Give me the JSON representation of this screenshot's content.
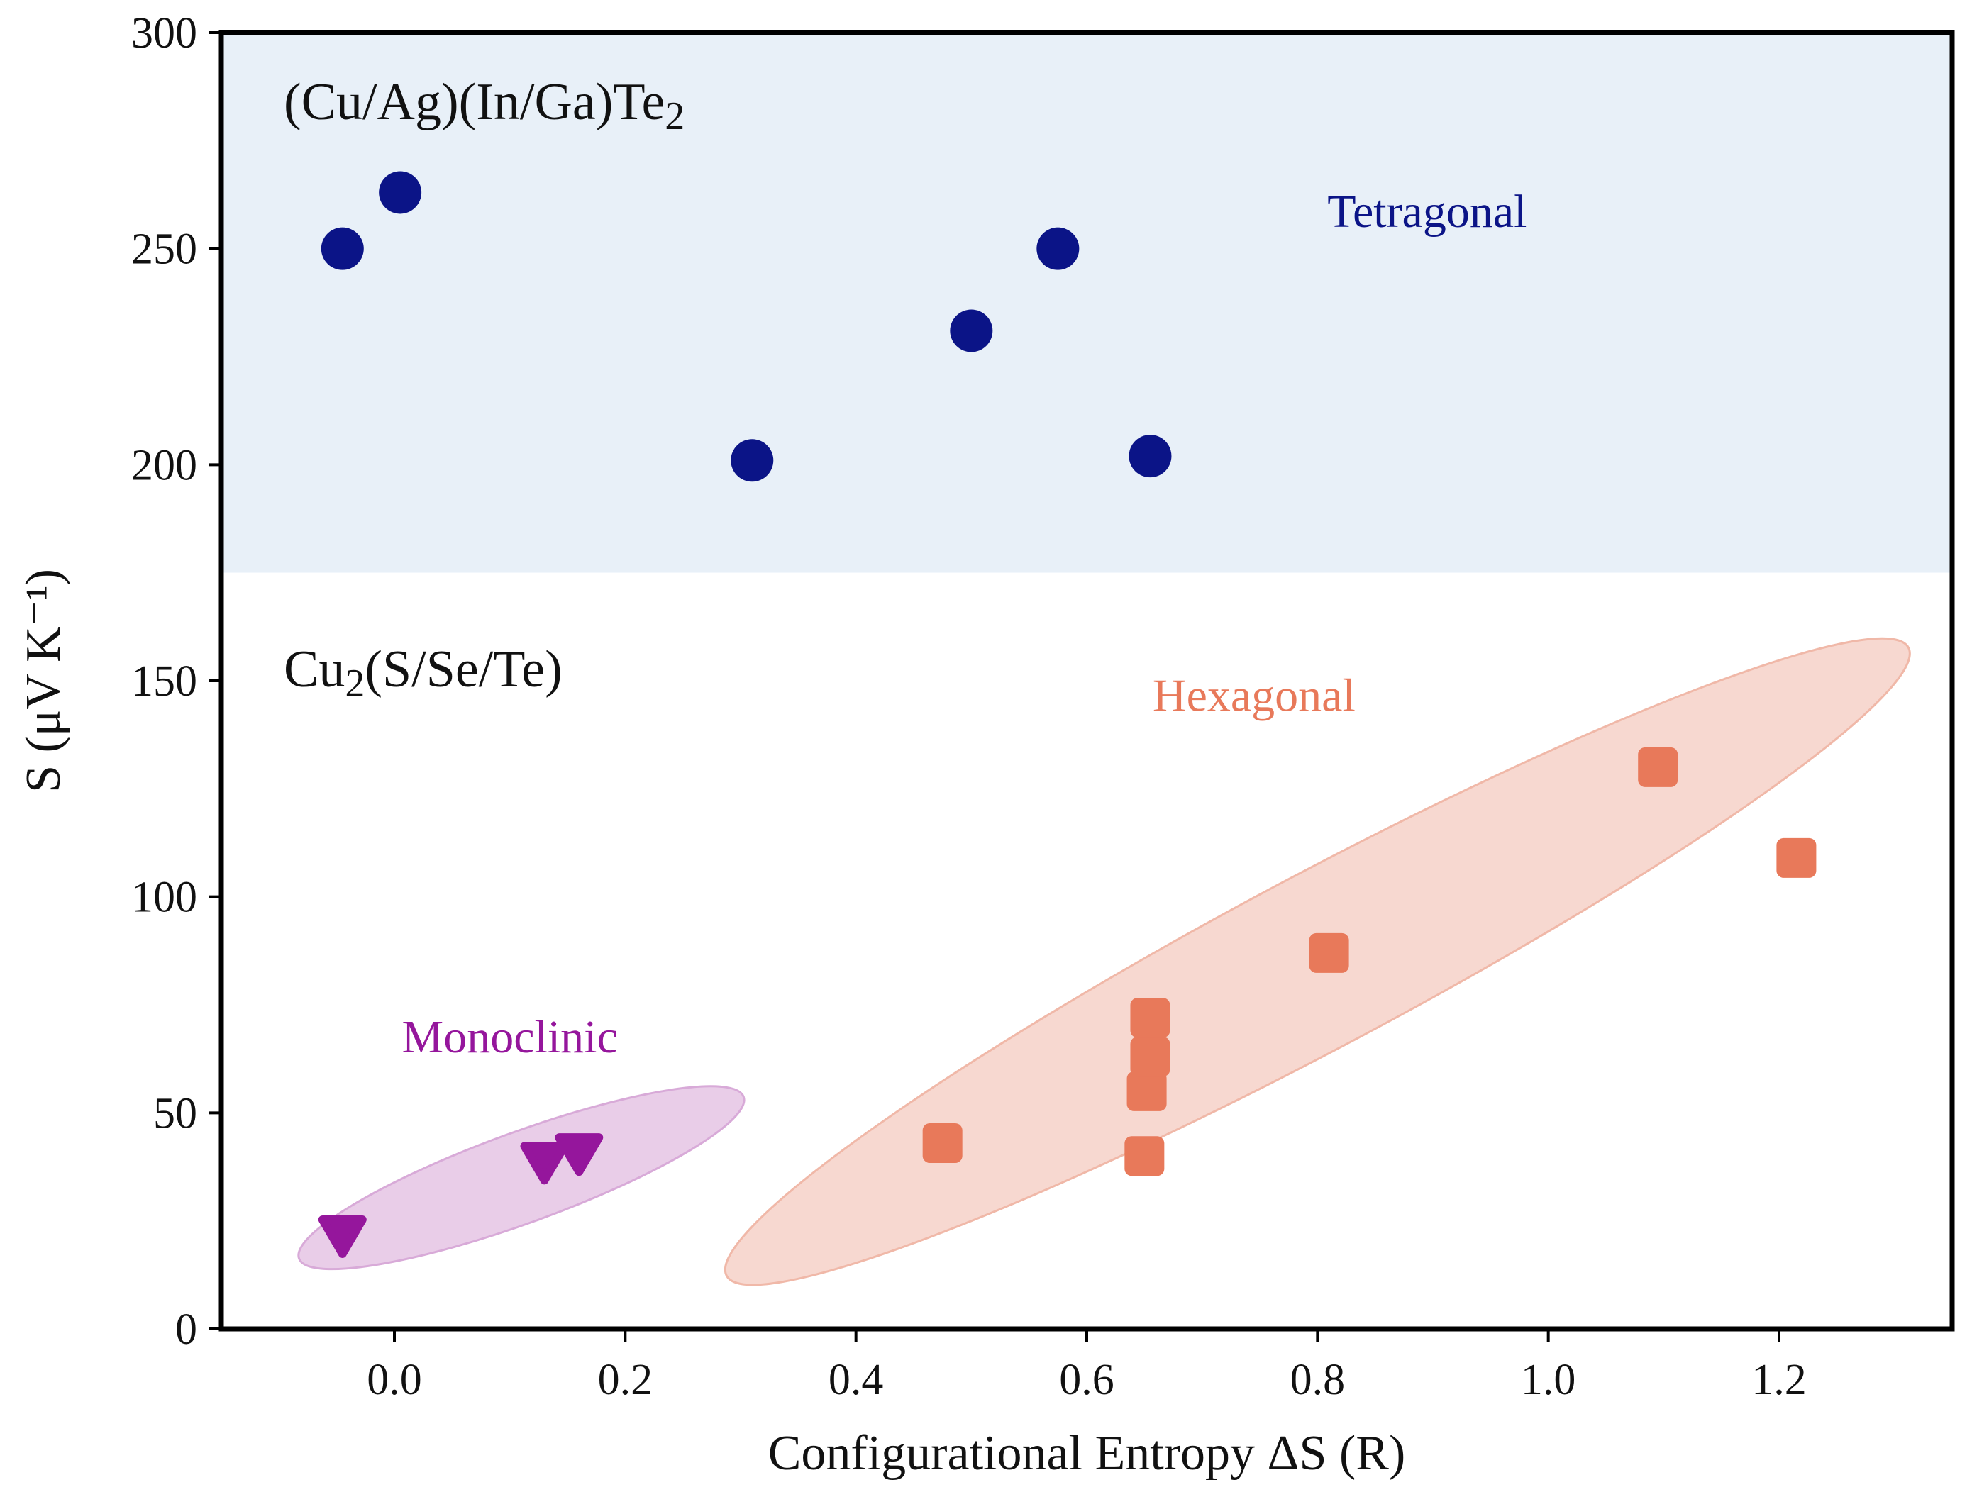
{
  "chart_data": {
    "type": "scatter",
    "title": "",
    "xlabel": "Configurational Entropy ΔS (R)",
    "ylabel": "S (μV K⁻¹)",
    "xlim": [
      -0.15,
      1.35
    ],
    "ylim": [
      0,
      300
    ],
    "x_ticks": [
      0.0,
      0.2,
      0.4,
      0.6,
      0.8,
      1.0,
      1.2
    ],
    "x_tick_labels": [
      "0.0",
      "0.2",
      "0.4",
      "0.6",
      "0.8",
      "1.0",
      "1.2"
    ],
    "y_ticks": [
      0,
      50,
      100,
      150,
      200,
      250,
      300
    ],
    "y_tick_labels": [
      "0",
      "50",
      "100",
      "150",
      "200",
      "250",
      "300"
    ],
    "grid": false,
    "regions": [
      {
        "name": "tetragonal-region",
        "label": "(Cu/Ag)(In/Ga)Te",
        "label_subscript": "2",
        "y_range": [
          175,
          300
        ],
        "color": "#e8f0f8"
      },
      {
        "name": "cu2x-region",
        "label": "Cu",
        "label_subscript": "2",
        "label_suffix": "(S/Se/Te)",
        "y_range": [
          0,
          175
        ],
        "color": "#ffffff"
      }
    ],
    "series": [
      {
        "name": "Tetragonal",
        "marker": "circle",
        "color": "#0b1487",
        "points": [
          {
            "x": -0.045,
            "y": 250
          },
          {
            "x": 0.005,
            "y": 263
          },
          {
            "x": 0.31,
            "y": 201
          },
          {
            "x": 0.5,
            "y": 231
          },
          {
            "x": 0.575,
            "y": 250
          },
          {
            "x": 0.655,
            "y": 202
          }
        ]
      },
      {
        "name": "Hexagonal",
        "marker": "square",
        "color": "#e8795a",
        "ellipse": {
          "center_x": 0.8,
          "center_y": 85,
          "semi_axis_x": 0.58,
          "semi_axis_y": 20,
          "angle_deg": 28,
          "fill": "#f7d8d0",
          "stroke": "#f0b8a8"
        },
        "points": [
          {
            "x": 0.475,
            "y": 43
          },
          {
            "x": 0.65,
            "y": 40
          },
          {
            "x": 0.652,
            "y": 55
          },
          {
            "x": 0.655,
            "y": 63
          },
          {
            "x": 0.655,
            "y": 72
          },
          {
            "x": 0.81,
            "y": 87
          },
          {
            "x": 1.095,
            "y": 130
          },
          {
            "x": 1.215,
            "y": 109
          }
        ]
      },
      {
        "name": "Monoclinic",
        "marker": "triangle-down",
        "color": "#95169c",
        "ellipse": {
          "center_x": 0.11,
          "center_y": 35,
          "semi_axis_x": 0.205,
          "semi_axis_y": 10.5,
          "angle_deg": 20,
          "fill": "#e9cde8",
          "stroke": "#d8aad8"
        },
        "points": [
          {
            "x": -0.045,
            "y": 22
          },
          {
            "x": 0.13,
            "y": 39
          },
          {
            "x": 0.16,
            "y": 41
          }
        ]
      }
    ],
    "annotations": [
      {
        "name": "tetragonal-label",
        "text": "Tetragonal",
        "x": 0.895,
        "y": 255,
        "color": "#0b1487"
      },
      {
        "name": "hexagonal-label",
        "text": "Hexagonal",
        "x": 0.745,
        "y": 143,
        "color": "#e8795a"
      },
      {
        "name": "monoclinic-label",
        "text": "Monoclinic",
        "x": 0.1,
        "y": 64,
        "color": "#95169c"
      }
    ]
  }
}
